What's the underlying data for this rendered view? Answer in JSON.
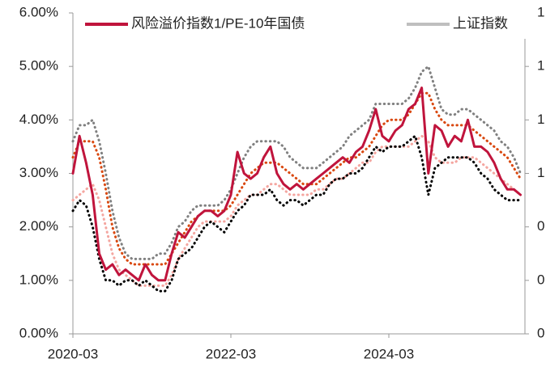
{
  "chart_data": {
    "type": "line",
    "categories": [
      "2020-03",
      "2020-04",
      "2020-05",
      "2020-06",
      "2020-07",
      "2020-08",
      "2020-09",
      "2020-10",
      "2020-11",
      "2020-12",
      "2021-01",
      "2021-02",
      "2021-03",
      "2021-04",
      "2021-05",
      "2021-06",
      "2021-07",
      "2021-08",
      "2021-09",
      "2021-10",
      "2021-11",
      "2021-12",
      "2022-01",
      "2022-02",
      "2022-03",
      "2022-04",
      "2022-05",
      "2022-06",
      "2022-07",
      "2022-08",
      "2022-09",
      "2022-10",
      "2022-11",
      "2022-12",
      "2023-01",
      "2023-02",
      "2023-03",
      "2023-04",
      "2023-05",
      "2023-06",
      "2023-07",
      "2023-08",
      "2023-09",
      "2023-10",
      "2023-11",
      "2023-12",
      "2024-01",
      "2024-02",
      "2024-03",
      "2024-04",
      "2024-05",
      "2024-06",
      "2024-07",
      "2024-08",
      "2024-09",
      "2024-10",
      "2024-11",
      "2024-12",
      "2025-01",
      "2025-02",
      "2025-03",
      "2025-04",
      "2025-05",
      "2025-06",
      "2025-07",
      "2025-08",
      "2025-09",
      "2025-10",
      "2025-11"
    ],
    "xticks": [
      "2020-03",
      "2022-03",
      "2024-03"
    ],
    "series": [
      {
        "color": "#808080",
        "dotted": true,
        "values": [
          3.6,
          3.9,
          3.9,
          4.0,
          3.6,
          3.0,
          2.3,
          1.8,
          1.5,
          1.4,
          1.4,
          1.4,
          1.4,
          1.5,
          1.5,
          1.7,
          2.0,
          2.1,
          2.3,
          2.4,
          2.4,
          2.4,
          2.4,
          2.5,
          2.7,
          3.0,
          3.3,
          3.5,
          3.6,
          3.6,
          3.6,
          3.6,
          3.5,
          3.3,
          3.2,
          3.1,
          3.1,
          3.1,
          3.2,
          3.3,
          3.4,
          3.5,
          3.7,
          3.8,
          3.9,
          4.0,
          4.3,
          4.3,
          4.3,
          4.3,
          4.3,
          4.4,
          4.6,
          4.9,
          5.0,
          4.6,
          4.2,
          4.1,
          4.1,
          4.2,
          4.2,
          4.1,
          4.0,
          3.9,
          3.8,
          3.6,
          3.5,
          3.3,
          3.0
        ]
      },
      {
        "color": "#d9480f",
        "dotted": true,
        "values": [
          3.3,
          3.6,
          3.6,
          3.6,
          3.3,
          2.7,
          2.0,
          1.6,
          1.4,
          1.3,
          1.3,
          1.3,
          1.3,
          1.3,
          1.3,
          1.5,
          1.7,
          1.9,
          2.1,
          2.2,
          2.3,
          2.3,
          2.3,
          2.3,
          2.4,
          2.6,
          2.8,
          3.0,
          3.1,
          3.2,
          3.2,
          3.2,
          3.1,
          3.0,
          2.9,
          2.8,
          2.8,
          2.8,
          2.9,
          3.0,
          3.1,
          3.2,
          3.3,
          3.3,
          3.4,
          3.5,
          3.7,
          3.9,
          4.0,
          4.0,
          4.0,
          4.1,
          4.3,
          4.5,
          4.5,
          4.2,
          4.0,
          3.9,
          3.9,
          3.9,
          3.9,
          3.8,
          3.7,
          3.6,
          3.5,
          3.4,
          3.3,
          3.1,
          2.9
        ]
      },
      {
        "color": "#f4a6a0",
        "dotted": true,
        "values": [
          2.5,
          2.6,
          2.7,
          2.8,
          2.5,
          2.0,
          1.5,
          1.2,
          1.1,
          1.0,
          0.9,
          0.9,
          0.9,
          0.9,
          0.9,
          1.1,
          1.4,
          1.6,
          1.8,
          2.0,
          2.1,
          2.1,
          2.1,
          2.1,
          2.2,
          2.4,
          2.5,
          2.6,
          2.6,
          2.7,
          2.8,
          2.8,
          2.7,
          2.6,
          2.6,
          2.6,
          2.6,
          2.7,
          2.7,
          2.8,
          2.9,
          2.9,
          3.0,
          3.1,
          3.2,
          3.2,
          3.4,
          3.5,
          3.5,
          3.5,
          3.5,
          3.5,
          3.6,
          3.7,
          3.6,
          3.3,
          3.2,
          3.2,
          3.2,
          3.3,
          3.3,
          3.3,
          3.2,
          3.1,
          3.0,
          2.9,
          2.8,
          2.7,
          2.6
        ]
      },
      {
        "color": "#000000",
        "dotted": true,
        "values": [
          2.3,
          2.5,
          2.4,
          2.0,
          1.4,
          1.0,
          1.0,
          0.9,
          1.0,
          1.0,
          0.9,
          1.0,
          0.9,
          0.8,
          0.8,
          1.0,
          1.4,
          1.5,
          1.6,
          1.8,
          2.0,
          2.1,
          2.0,
          1.9,
          2.1,
          2.3,
          2.4,
          2.6,
          2.6,
          2.6,
          2.7,
          2.5,
          2.4,
          2.5,
          2.5,
          2.4,
          2.5,
          2.6,
          2.6,
          2.8,
          2.9,
          2.9,
          3.0,
          3.0,
          3.1,
          3.3,
          3.5,
          3.4,
          3.5,
          3.5,
          3.5,
          3.6,
          3.7,
          3.3,
          2.6,
          3.1,
          3.2,
          3.3,
          3.3,
          3.3,
          3.3,
          3.2,
          3.0,
          2.9,
          2.7,
          2.6,
          2.5,
          2.5,
          2.5
        ]
      },
      {
        "name": "风险溢价指数1/PE-10年国债",
        "color": "#c0143c",
        "values": [
          3.0,
          3.7,
          3.2,
          2.6,
          1.5,
          1.2,
          1.3,
          1.1,
          1.2,
          1.1,
          1.0,
          1.3,
          1.1,
          1.0,
          1.0,
          1.5,
          1.9,
          1.8,
          2.0,
          2.2,
          2.3,
          2.3,
          2.2,
          2.3,
          2.6,
          3.4,
          3.0,
          2.9,
          3.0,
          3.3,
          3.5,
          3.0,
          2.8,
          2.7,
          2.8,
          2.7,
          2.8,
          2.9,
          3.0,
          3.1,
          3.2,
          3.3,
          3.2,
          3.4,
          3.5,
          3.8,
          4.2,
          3.7,
          3.6,
          3.8,
          3.9,
          4.2,
          4.3,
          4.6,
          3.0,
          3.9,
          3.8,
          3.5,
          3.7,
          3.6,
          4.0,
          3.5,
          3.5,
          3.4,
          3.2,
          2.9,
          2.7,
          2.7,
          2.6
        ]
      }
    ],
    "extra_legend": {
      "name": "上证指数",
      "color": "#bfbfbf"
    },
    "ylim": [
      0,
      6
    ],
    "yticks": [
      {
        "value": 0,
        "label": "0.00%"
      },
      {
        "value": 1,
        "label": "1.00%"
      },
      {
        "value": 2,
        "label": "2.00%"
      },
      {
        "value": 3,
        "label": "3.00%"
      },
      {
        "value": 4,
        "label": "4.00%"
      },
      {
        "value": 5,
        "label": "5.00%"
      },
      {
        "value": 6,
        "label": "6.00%"
      }
    ],
    "y2lim": [
      0,
      1.5
    ],
    "y2ticks": [
      {
        "value": 0,
        "label": "0"
      },
      {
        "value": 0.25,
        "label": "0"
      },
      {
        "value": 0.5,
        "label": "0"
      },
      {
        "value": 0.75,
        "label": "1"
      },
      {
        "value": 1,
        "label": "1"
      },
      {
        "value": 1.25,
        "label": "1"
      },
      {
        "value": 1.5,
        "label": "1"
      }
    ]
  }
}
